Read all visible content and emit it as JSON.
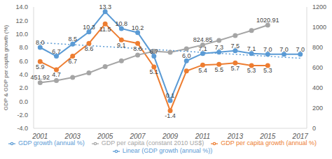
{
  "chart_data": {
    "type": "line",
    "y_label": "GDP & GDP per capita growth (%)",
    "x": [
      2001,
      2002,
      2003,
      2004,
      2005,
      2006,
      2007,
      2008,
      2009,
      2010,
      2011,
      2012,
      2013,
      2014,
      2015,
      2016,
      2017
    ],
    "xlim": [
      2000.6,
      2017.4
    ],
    "xticks": [
      2001,
      2003,
      2005,
      2007,
      2009,
      2011,
      2013,
      2015,
      2017
    ],
    "ylim": [
      -4,
      14
    ],
    "yticks": [
      {
        "value": -4,
        "label": "-4.0"
      },
      {
        "value": -2,
        "label": "-2.0"
      },
      {
        "value": 0,
        "label": "0.0"
      },
      {
        "value": 2,
        "label": "2.0"
      },
      {
        "value": 4,
        "label": "4.0"
      },
      {
        "value": 6,
        "label": "6.0"
      },
      {
        "value": 8,
        "label": "8.0"
      },
      {
        "value": 10,
        "label": "10.0"
      },
      {
        "value": 12,
        "label": "12.0"
      },
      {
        "value": 14,
        "label": "14.0"
      }
    ],
    "y2lim": [
      0,
      1200
    ],
    "y2ticks": [
      0,
      200,
      400,
      600,
      800,
      1000,
      1200
    ],
    "grid": false,
    "legend": "bottom",
    "data_labels": true,
    "series": [
      {
        "name": "GDP growth (annual %)",
        "color": "#5b9bd5",
        "marker": "circle",
        "line_style": "solid",
        "values": [
          8.0,
          6.7,
          8.5,
          10.3,
          13.3,
          10.8,
          10.2,
          6.7,
          0.1,
          6.0,
          7.1,
          7.3,
          7.5,
          7.1,
          7.0,
          7.0,
          7.0
        ],
        "value_labels": [
          "8.0",
          "6.7",
          "8.5",
          "10.3",
          "13.3",
          "10.8",
          "10.2",
          "6.7",
          "0.1",
          "6.0",
          "7.1",
          "7.3",
          "7.5",
          "7.1",
          "7.0",
          "7.0",
          "7.0"
        ]
      },
      {
        "name": "GDP per capita growth (annual %)",
        "color": "#ed7d31",
        "marker": "circle",
        "line_style": "solid",
        "values": [
          5.9,
          4.7,
          6.7,
          8.6,
          11.5,
          9.1,
          8.6,
          5.1,
          -1.4,
          4.5,
          5.4,
          5.5,
          5.7,
          5.3,
          5.3,
          null,
          null
        ],
        "value_labels": [
          "5.9",
          "4.7",
          "6.7",
          "8.6",
          "11.5",
          "9.1",
          "8.6",
          "5.1",
          "-1.4",
          null,
          "5.4",
          "5.5",
          "5.7",
          "5.3",
          "5.3",
          null,
          null
        ]
      },
      {
        "name": "GDP per capita (constant 2010 US$)",
        "color": "#a5a5a5",
        "marker": "circle",
        "line_style": "solid",
        "axis": "y2",
        "values": [
          451.92,
          473,
          504,
          548,
          611,
          667,
          725,
          762,
          752,
          786,
          824.85,
          869,
          918,
          967,
          1020.91,
          null,
          null
        ],
        "value_labels": [
          "451.92",
          null,
          null,
          null,
          null,
          null,
          null,
          null,
          null,
          null,
          "824.85",
          null,
          null,
          null,
          "1020.91",
          null,
          null
        ]
      },
      {
        "name": "Linear (GDP growth (annual %))",
        "color": "#5b9bd5",
        "marker": "none",
        "line_style": "dotted",
        "values": [
          8.7,
          8.56,
          8.41,
          8.27,
          8.12,
          7.98,
          7.84,
          7.69,
          7.55,
          7.41,
          7.26,
          7.12,
          6.98,
          6.83,
          6.69,
          6.54,
          6.4
        ],
        "value_labels": [
          null,
          null,
          null,
          null,
          null,
          null,
          null,
          null,
          null,
          null,
          null,
          null,
          null,
          null,
          null,
          null,
          null
        ]
      }
    ]
  }
}
